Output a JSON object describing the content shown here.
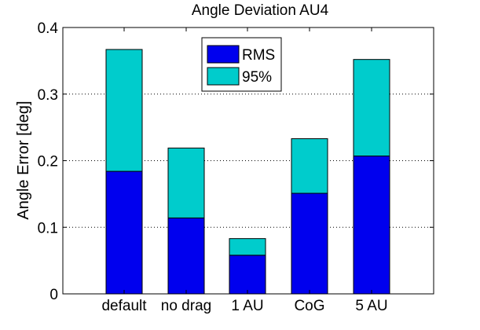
{
  "chart_data": {
    "type": "bar",
    "stacked": true,
    "title": "Angle Deviation AU4",
    "xlabel": "",
    "ylabel": "Angle Error [deg]",
    "ylim": [
      0,
      0.4
    ],
    "yticks": [
      0,
      0.1,
      0.2,
      0.3,
      0.4
    ],
    "ytick_labels": [
      "0",
      "0.1",
      "0.2",
      "0.3",
      "0.4"
    ],
    "grid": "y-dotted",
    "legend_position": "top-center",
    "categories": [
      "default",
      "no drag",
      "1 AU",
      "CoG",
      "5 AU"
    ],
    "series": [
      {
        "name": "RMS",
        "color": "#0000ee",
        "values": [
          0.184,
          0.114,
          0.058,
          0.151,
          0.207
        ]
      },
      {
        "name": "95%",
        "color": "#00cccc",
        "values": [
          0.183,
          0.105,
          0.025,
          0.082,
          0.145
        ]
      }
    ]
  }
}
